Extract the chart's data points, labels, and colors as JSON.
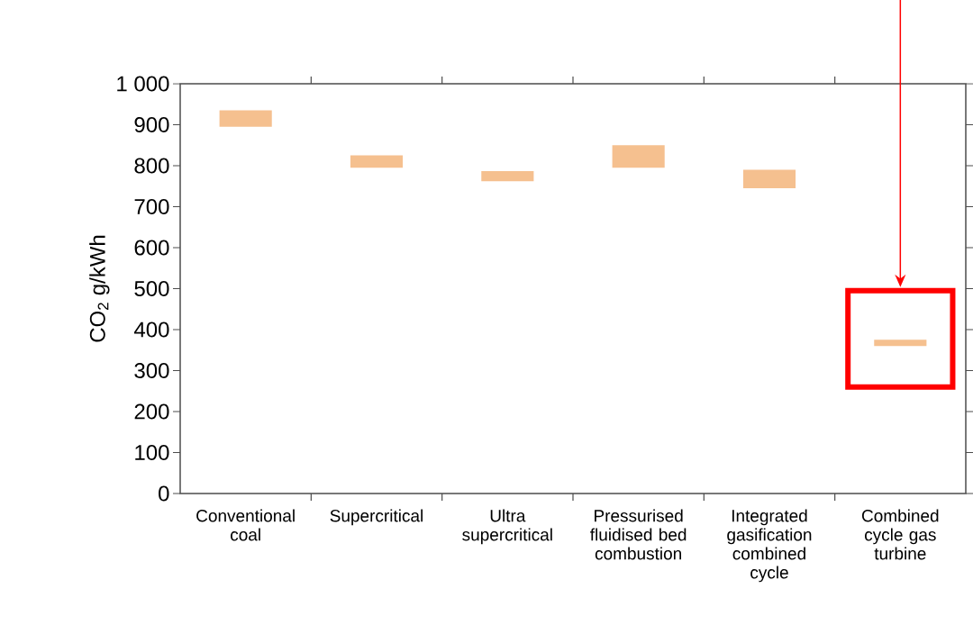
{
  "chart_data": {
    "type": "bar",
    "ylabel": "CO$_{2}$ g/kWh",
    "categories": [
      "Conventional coal",
      "Supercritical",
      "Ultra supercritical",
      "Pressurised fluidised bed combustion",
      "Integrated gasification combined cycle",
      "Combined cycle gas turbine"
    ],
    "base": [
      895,
      795,
      762,
      795,
      745,
      360
    ],
    "values": [
      40,
      30,
      25,
      55,
      45,
      15
    ],
    "color": "#f5c08f",
    "ylim": [
      0,
      1000
    ],
    "yticks": [
      0,
      100,
      200,
      300,
      400,
      500,
      600,
      700,
      800,
      900,
      {
        "value": 1000,
        "label": "1 000"
      }
    ]
  }
}
